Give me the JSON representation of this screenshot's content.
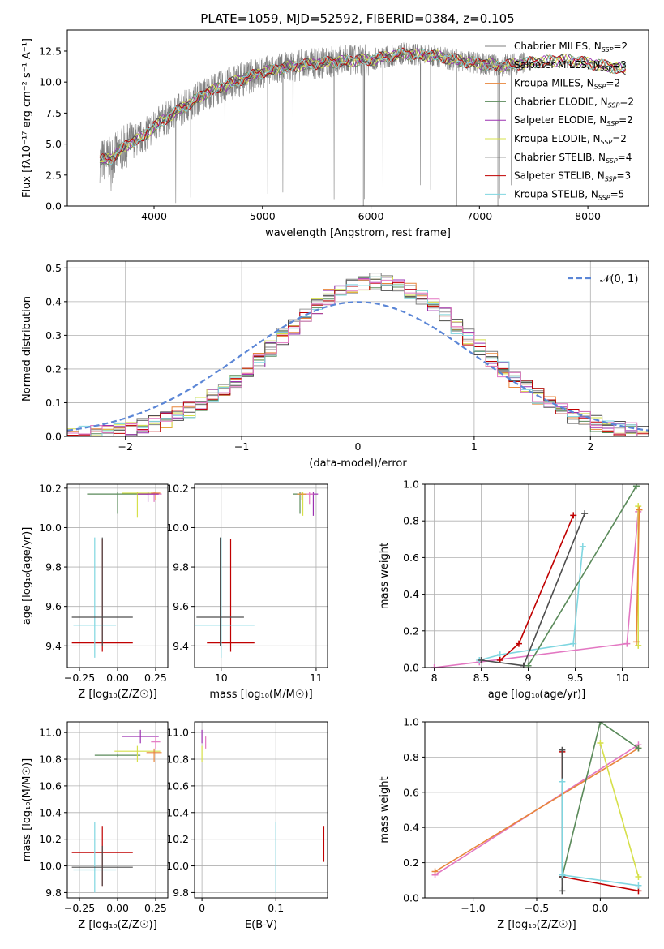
{
  "figure": {
    "title": "PLATE=1059, MJD=52592, FIBERID=0384, z=0.105"
  },
  "colors": {
    "chabrier_miles": "#7f7f7f",
    "salpeter_miles": "#9a9a9a",
    "kroupa_miles": "#e8853a",
    "chabrier_elodie": "#5a8a5a",
    "salpeter_elodie": "#9b30b0",
    "kroupa_elodie": "#d6e04a",
    "chabrier_stelib": "#4d4d4d",
    "salpeter_stelib": "#c00000",
    "kroupa_stelib": "#7fd6e0",
    "pink": "#e377c2",
    "normal_curve": "#5b86d6"
  },
  "chart_data": [
    {
      "id": "spectrum",
      "type": "line",
      "xlabel": "wavelength [Angstrom, rest frame]",
      "ylabel": "Flux [f",
      "xlim": [
        3200,
        8560
      ],
      "ylim": [
        0,
        14.2
      ],
      "xticks": [
        4000,
        5000,
        6000,
        7000,
        8000
      ],
      "yticks": [
        0.0,
        2.5,
        5.0,
        7.5,
        10.0,
        12.5
      ],
      "grid": false,
      "legend": "top-right",
      "series": [
        {
          "name": "Chabrier MILES, N_SSP=2",
          "color_key": "chabrier_miles"
        },
        {
          "name": "Salpeter MILES, N_SSP=3",
          "color_key": "salpeter_miles"
        },
        {
          "name": "Kroupa MILES, N_SSP=2",
          "color_key": "kroupa_miles"
        },
        {
          "name": "Chabrier ELODIE, N_SSP=2",
          "color_key": "chabrier_elodie"
        },
        {
          "name": "Salpeter ELODIE, N_SSP=2",
          "color_key": "salpeter_elodie"
        },
        {
          "name": "Kroupa ELODIE, N_SSP=2",
          "color_key": "kroupa_elodie"
        },
        {
          "name": "Chabrier STELIB, N_SSP=4",
          "color_key": "chabrier_stelib"
        },
        {
          "name": "Salpeter STELIB, N_SSP=3",
          "color_key": "salpeter_stelib"
        },
        {
          "name": "Kroupa STELIB, N_SSP=5",
          "color_key": "kroupa_stelib"
        }
      ],
      "continuum": {
        "x": [
          3500,
          3600,
          3700,
          3800,
          3900,
          4000,
          4200,
          4500,
          4800,
          5000,
          5300,
          5600,
          6000,
          6300,
          6600,
          6900,
          7200,
          7500,
          7800,
          8100,
          8350
        ],
        "y": [
          3.7,
          3.8,
          4.6,
          5.2,
          5.6,
          6.4,
          7.6,
          9.2,
          10.2,
          10.8,
          11.3,
          11.6,
          11.8,
          12.3,
          12.1,
          11.6,
          11.3,
          11.6,
          11.8,
          11.4,
          11.0
        ]
      }
    },
    {
      "id": "residuals",
      "type": "histogram",
      "xlabel": "(data-model)/error",
      "ylabel": "Normed distribution",
      "xlim": [
        -2.5,
        2.5
      ],
      "ylim": [
        0,
        0.52
      ],
      "xticks": [
        -2,
        -1,
        0,
        1,
        2
      ],
      "yticks": [
        0.0,
        0.1,
        0.2,
        0.3,
        0.4,
        0.5
      ],
      "grid": true,
      "legend": "top-right",
      "normal_label": "𝒩(0, 1)",
      "bin_width": 0.1,
      "hist_series": [
        "chabrier_miles",
        "salpeter_miles",
        "kroupa_miles",
        "chabrier_elodie",
        "salpeter_elodie",
        "kroupa_elodie",
        "chabrier_stelib",
        "salpeter_stelib",
        "kroupa_stelib",
        "pink"
      ]
    },
    {
      "id": "age_vs_Z",
      "type": "errorbar",
      "xlabel": "Z [log₁₀(Z/Z☉)]",
      "ylabel": "age  [log₁₀(age/yr)]",
      "xlim": [
        -0.33,
        0.33
      ],
      "ylim": [
        9.29,
        10.22
      ],
      "xticks": [
        -0.25,
        0.0,
        0.25
      ],
      "xtick_labels": [
        "−0.25",
        "0.00",
        "0.25"
      ],
      "yticks": [
        9.4,
        9.6,
        9.8,
        10.0,
        10.2
      ],
      "grid": true,
      "bars": [
        {
          "c": "salpeter_stelib",
          "x": -0.1,
          "xerr": 0.2,
          "y": 9.415,
          "y0": 9.37,
          "y1": 9.94
        },
        {
          "c": "kroupa_stelib",
          "x": -0.15,
          "xerr": 0.14,
          "y": 9.505,
          "y0": 9.34,
          "y1": 9.95
        },
        {
          "c": "chabrier_stelib",
          "x": -0.1,
          "xerr": 0.2,
          "y": 9.545,
          "y0": 9.4,
          "y1": 9.95
        },
        {
          "c": "chabrier_elodie",
          "x": 0.0,
          "xerr": 0.2,
          "y": 10.17,
          "y0": 10.07,
          "y1": 10.18
        },
        {
          "c": "kroupa_elodie",
          "x": 0.13,
          "xerr": 0.1,
          "y": 10.175,
          "y0": 10.05,
          "y1": 10.18
        },
        {
          "c": "pink",
          "x": 0.24,
          "xerr": 0.05,
          "y": 10.17,
          "y0": 10.13,
          "y1": 10.18
        },
        {
          "c": "kroupa_miles",
          "x": 0.25,
          "xerr": 0.03,
          "y": 10.175,
          "y0": 10.14,
          "y1": 10.18
        },
        {
          "c": "salpeter_elodie",
          "x": 0.2,
          "xerr": 0.07,
          "y": 10.17,
          "y0": 10.13,
          "y1": 10.18
        }
      ]
    },
    {
      "id": "age_vs_mass",
      "type": "errorbar",
      "xlabel": "mass [log₁₀(M/M☉)]",
      "xlim": [
        9.72,
        11.12
      ],
      "ylim": [
        9.29,
        10.22
      ],
      "xticks": [
        10,
        11
      ],
      "yticks": [
        9.4,
        9.6,
        9.8,
        10.0,
        10.2
      ],
      "grid": true,
      "bars": [
        {
          "c": "salpeter_stelib",
          "x": 10.1,
          "xerr": 0.25,
          "y": 9.415,
          "y0": 9.37,
          "y1": 9.94
        },
        {
          "c": "kroupa_stelib",
          "x": 10.0,
          "xerr": 0.35,
          "y": 9.505,
          "y0": 9.34,
          "y1": 9.95
        },
        {
          "c": "chabrier_stelib",
          "x": 9.99,
          "xerr": 0.25,
          "y": 9.545,
          "y0": 9.4,
          "y1": 9.95
        },
        {
          "c": "chabrier_elodie",
          "x": 10.83,
          "xerr": 0.07,
          "y": 10.17,
          "y0": 10.07,
          "y1": 10.18
        },
        {
          "c": "kroupa_elodie",
          "x": 10.86,
          "xerr": 0.05,
          "y": 10.17,
          "y0": 10.06,
          "y1": 10.18
        },
        {
          "c": "salpeter_elodie",
          "x": 10.97,
          "xerr": 0.05,
          "y": 10.17,
          "y0": 10.06,
          "y1": 10.18
        },
        {
          "c": "pink",
          "x": 10.93,
          "xerr": 0.04,
          "y": 10.17,
          "y0": 10.12,
          "y1": 10.18
        },
        {
          "c": "kroupa_miles",
          "x": 10.85,
          "xerr": 0.05,
          "y": 10.17,
          "y0": 10.14,
          "y1": 10.18
        }
      ]
    },
    {
      "id": "weight_vs_age",
      "type": "line",
      "xlabel": "age  [log₁₀(age/yr)]",
      "ylabel": "mass weight",
      "xlim": [
        7.9,
        10.28
      ],
      "ylim": [
        0,
        1.0
      ],
      "xticks": [
        8.0,
        8.5,
        9.0,
        9.5,
        10.0
      ],
      "yticks": [
        0.0,
        0.2,
        0.4,
        0.6,
        0.8,
        1.0
      ],
      "grid": true,
      "series": [
        {
          "c": "pink",
          "x": [
            8.0,
            8.48,
            10.05,
            10.17
          ],
          "y": [
            0.0,
            0.03,
            0.13,
            0.85
          ]
        },
        {
          "c": "kroupa_stelib",
          "x": [
            8.48,
            8.7,
            9.48,
            9.58
          ],
          "y": [
            0.04,
            0.07,
            0.13,
            0.66
          ]
        },
        {
          "c": "salpeter_stelib",
          "x": [
            8.7,
            8.9,
            9.48
          ],
          "y": [
            0.04,
            0.13,
            0.83
          ]
        },
        {
          "c": "chabrier_stelib",
          "x": [
            8.5,
            8.95,
            9.6
          ],
          "y": [
            0.04,
            0.01,
            0.84
          ]
        },
        {
          "c": "chabrier_elodie",
          "x": [
            9.0,
            10.15
          ],
          "y": [
            0.01,
            0.99
          ]
        },
        {
          "c": "kroupa_elodie",
          "x": [
            10.17,
            10.17
          ],
          "y": [
            0.12,
            0.88
          ]
        },
        {
          "c": "kroupa_miles",
          "x": [
            10.15,
            10.18
          ],
          "y": [
            0.14,
            0.86
          ]
        }
      ]
    },
    {
      "id": "mass_vs_Z",
      "type": "errorbar",
      "xlabel": "Z [log₁₀(Z/Z☉)]",
      "ylabel": "mass [log₁₀(M/M☉)]",
      "xlim": [
        -0.33,
        0.33
      ],
      "ylim": [
        9.76,
        11.08
      ],
      "xticks": [
        -0.25,
        0.0,
        0.25
      ],
      "xtick_labels": [
        "−0.25",
        "0.00",
        "0.25"
      ],
      "yticks": [
        9.8,
        10.0,
        10.2,
        10.4,
        10.6,
        10.8,
        11.0
      ],
      "grid": true,
      "bars": [
        {
          "c": "salpeter_stelib",
          "x": -0.1,
          "xerr": 0.2,
          "y": 10.1,
          "y0": 9.85,
          "y1": 10.3
        },
        {
          "c": "kroupa_stelib",
          "x": -0.15,
          "xerr": 0.14,
          "y": 9.97,
          "y0": 9.8,
          "y1": 10.33
        },
        {
          "c": "chabrier_stelib",
          "x": -0.1,
          "xerr": 0.2,
          "y": 9.99,
          "y0": 9.85,
          "y1": 10.15
        },
        {
          "c": "chabrier_elodie",
          "x": 0.0,
          "xerr": 0.15,
          "y": 10.83,
          "y0": 10.82,
          "y1": 10.84
        },
        {
          "c": "kroupa_elodie",
          "x": 0.13,
          "xerr": 0.15,
          "y": 10.86,
          "y0": 10.78,
          "y1": 10.9
        },
        {
          "c": "salpeter_elodie",
          "x": 0.15,
          "xerr": 0.12,
          "y": 10.97,
          "y0": 10.92,
          "y1": 11.02
        },
        {
          "c": "kroupa_miles",
          "x": 0.24,
          "xerr": 0.05,
          "y": 10.85,
          "y0": 10.78,
          "y1": 10.88
        },
        {
          "c": "pink",
          "x": 0.25,
          "xerr": 0.03,
          "y": 10.93,
          "y0": 10.88,
          "y1": 10.97
        }
      ]
    },
    {
      "id": "mass_vs_ebv",
      "type": "errorbar",
      "xlabel": "E(B-V)",
      "xlim": [
        -0.01,
        0.17
      ],
      "ylim": [
        9.76,
        11.08
      ],
      "xticks": [
        0.0,
        0.1
      ],
      "yticks": [
        9.8,
        10.0,
        10.2,
        10.4,
        10.6,
        10.8,
        11.0
      ],
      "grid": true,
      "bars": [
        {
          "c": "kroupa_stelib",
          "x": 0.1,
          "y0": 9.8,
          "y1": 10.33
        },
        {
          "c": "salpeter_stelib",
          "x": 0.165,
          "y0": 10.03,
          "y1": 10.3
        },
        {
          "c": "salpeter_elodie",
          "x": 0.0,
          "y0": 10.92,
          "y1": 11.02
        },
        {
          "c": "kroupa_elodie",
          "x": 0.0,
          "y0": 10.78,
          "y1": 10.9
        },
        {
          "c": "pink",
          "x": 0.005,
          "y0": 10.88,
          "y1": 10.97
        }
      ]
    },
    {
      "id": "weight_vs_Z",
      "type": "line",
      "xlabel": "Z [log₁₀(Z/Z☉)]",
      "ylabel": "mass weight",
      "xlim": [
        -1.38,
        0.38
      ],
      "ylim": [
        0,
        1.0
      ],
      "xticks": [
        -1.0,
        -0.5,
        0.0
      ],
      "xtick_labels": [
        "−1.0",
        "−0.5",
        "0.0"
      ],
      "yticks": [
        0.0,
        0.2,
        0.4,
        0.6,
        0.8,
        1.0
      ],
      "grid": true,
      "series": [
        {
          "c": "pink",
          "x": [
            -1.3,
            0.3
          ],
          "y": [
            0.13,
            0.87
          ]
        },
        {
          "c": "kroupa_miles",
          "x": [
            -1.3,
            0.3
          ],
          "y": [
            0.15,
            0.85
          ]
        },
        {
          "c": "chabrier_elodie",
          "x": [
            -0.3,
            0.0,
            0.3
          ],
          "y": [
            0.12,
            1.0,
            0.85
          ]
        },
        {
          "c": "kroupa_elodie",
          "x": [
            0.0,
            0.3
          ],
          "y": [
            0.88,
            0.12
          ]
        },
        {
          "c": "salpeter_stelib",
          "x": [
            -0.3,
            -0.3,
            0.3
          ],
          "y": [
            0.83,
            0.12,
            0.04
          ]
        },
        {
          "c": "chabrier_stelib",
          "x": [
            -0.3,
            -0.3,
            -0.3
          ],
          "y": [
            0.84,
            0.04,
            0.12
          ]
        },
        {
          "c": "kroupa_stelib",
          "x": [
            -0.3,
            -0.3,
            0.3
          ],
          "y": [
            0.66,
            0.13,
            0.07
          ]
        }
      ]
    }
  ]
}
